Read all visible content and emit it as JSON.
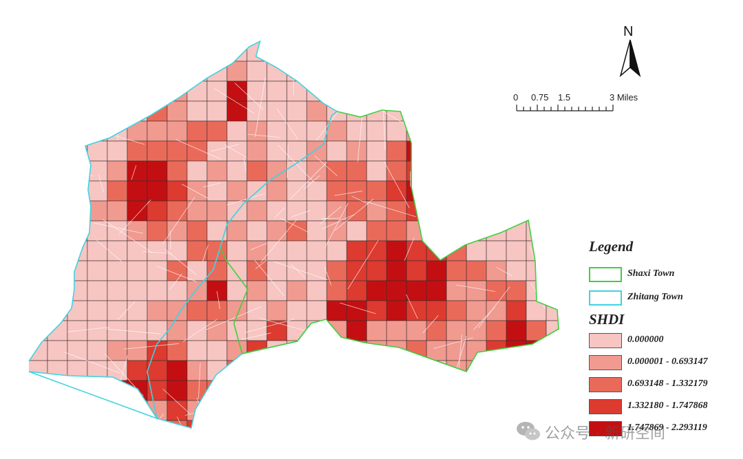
{
  "north_arrow": {
    "label": "N"
  },
  "scale_bar": {
    "ticks": [
      "0",
      "0.75",
      "1.5",
      "3 Miles"
    ]
  },
  "legend": {
    "title": "Legend",
    "boundaries": [
      {
        "label": "Shaxi Town",
        "color": "#3fcf3f"
      },
      {
        "label": "Zhitang Town",
        "color": "#3fd3e0"
      }
    ],
    "shdi_title": "SHDI",
    "classes": [
      {
        "label": "0.000000",
        "color": "#f7c5c2"
      },
      {
        "label": "0.000001 - 0.693147",
        "color": "#f19a90"
      },
      {
        "label": "0.693148 - 1.332179",
        "color": "#ea6a5a"
      },
      {
        "label": "1.332180 - 1.747868",
        "color": "#dd3a30"
      },
      {
        "label": "1.747869 - 2.293119",
        "color": "#c40f12"
      }
    ]
  },
  "watermark": {
    "text": "公众号 · 新研空间"
  }
}
